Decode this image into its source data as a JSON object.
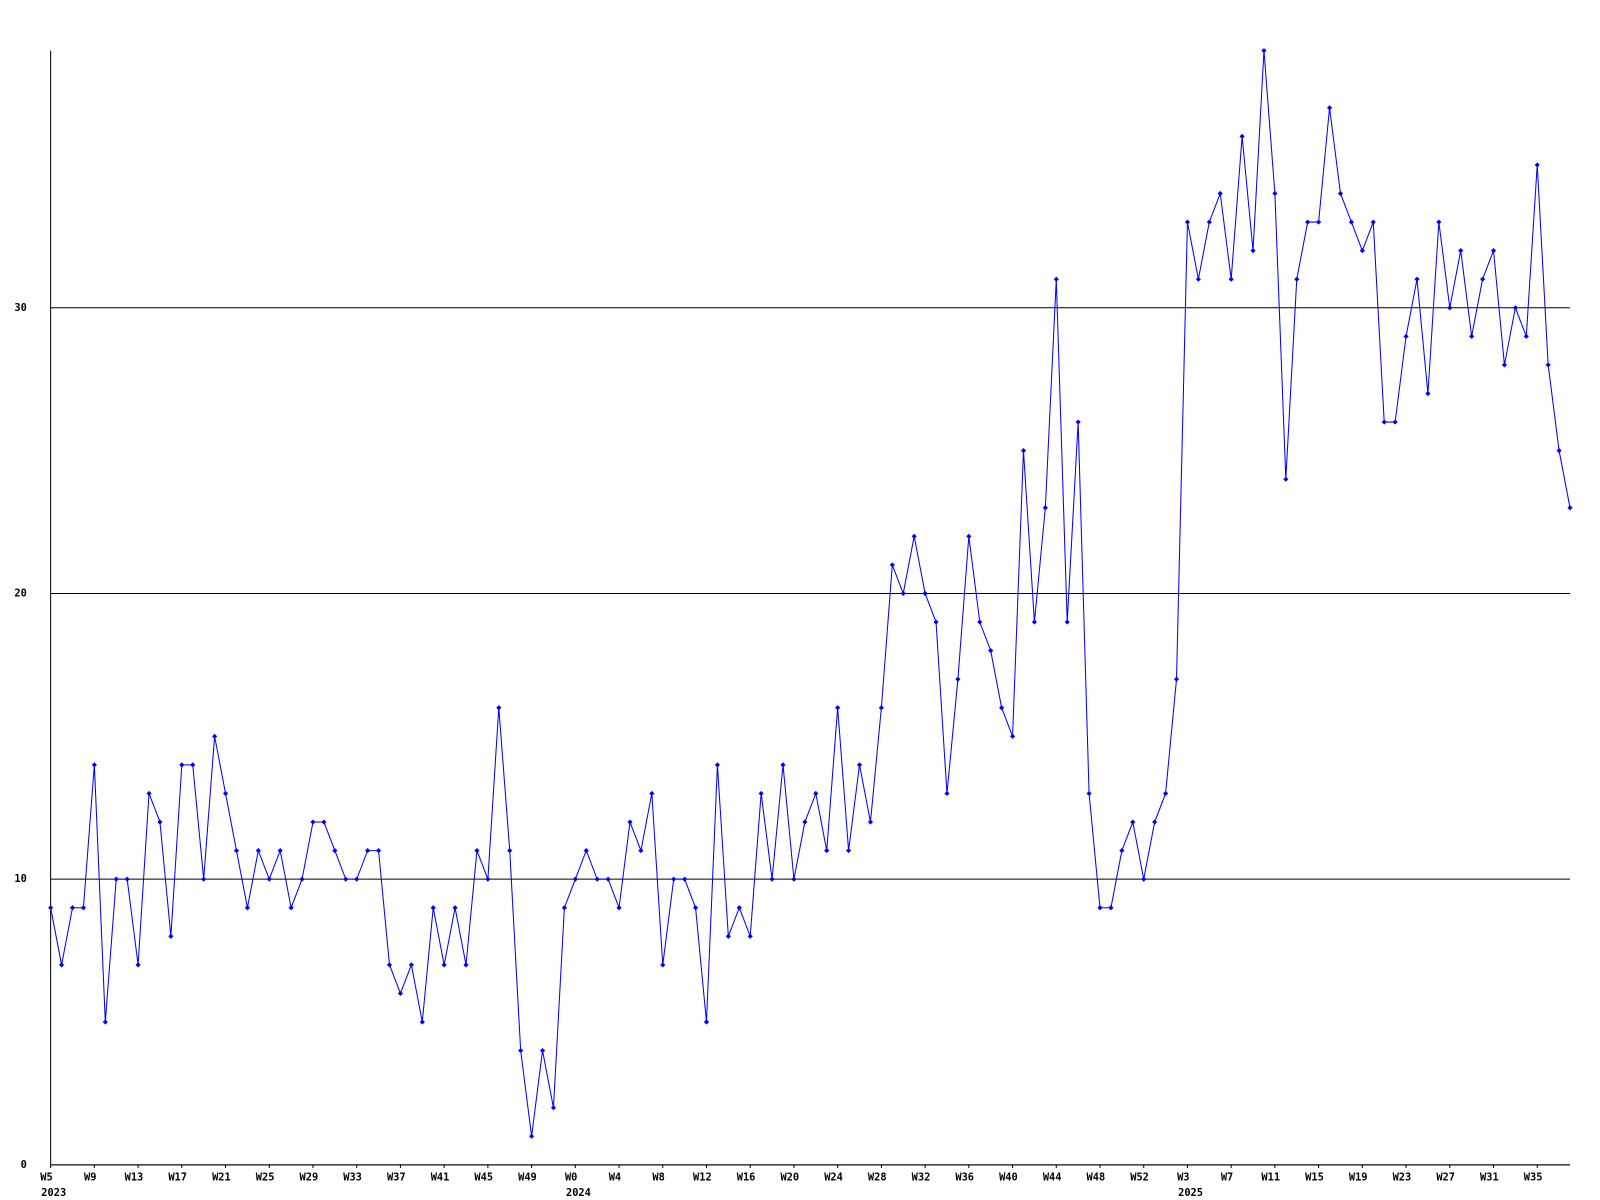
{
  "chart_data": {
    "type": "line",
    "categories": [
      "W5",
      null,
      null,
      null,
      "W9",
      null,
      null,
      null,
      "W13",
      null,
      null,
      null,
      "W17",
      null,
      null,
      null,
      "W21",
      null,
      null,
      null,
      "W25",
      null,
      null,
      null,
      "W29",
      null,
      null,
      null,
      "W33",
      null,
      null,
      null,
      "W37",
      null,
      null,
      null,
      "W41",
      null,
      null,
      null,
      "W45",
      null,
      null,
      null,
      "W49",
      null,
      null,
      null,
      "W0",
      null,
      null,
      null,
      "W4",
      null,
      null,
      null,
      "W8",
      null,
      null,
      null,
      "W12",
      null,
      null,
      null,
      "W16",
      null,
      null,
      null,
      "W20",
      null,
      null,
      null,
      "W24",
      null,
      null,
      null,
      "W28",
      null,
      null,
      null,
      "W32",
      null,
      null,
      null,
      "W36",
      null,
      null,
      null,
      "W40",
      null,
      null,
      null,
      "W44",
      null,
      null,
      null,
      "W48",
      null,
      null,
      null,
      "W52",
      null,
      null,
      null,
      "W3",
      null,
      null,
      null,
      "W7",
      null,
      null,
      null,
      "W11",
      null,
      null,
      null,
      "W15",
      null,
      null,
      null,
      "W19",
      null,
      null,
      null,
      "W23",
      null,
      null,
      null,
      "W27",
      null,
      null,
      null,
      "W31",
      null,
      null,
      null,
      "W35",
      null,
      null,
      null
    ],
    "year_labels": [
      "2023",
      "2024",
      "2025"
    ],
    "series": [
      {
        "color": "#0000ff",
        "values": [
          9,
          7,
          9,
          9,
          14,
          5,
          10,
          10,
          7,
          13,
          12,
          8,
          14,
          14,
          10,
          15,
          13,
          11,
          9,
          11,
          10,
          11,
          9,
          10,
          12,
          12,
          11,
          10,
          10,
          11,
          11,
          7,
          6,
          7,
          5,
          9,
          7,
          9,
          7,
          11,
          10,
          16,
          11,
          4,
          1,
          4,
          2,
          9,
          10,
          11,
          10,
          10,
          9,
          12,
          11,
          13,
          7,
          10,
          10,
          9,
          5,
          14,
          8,
          9,
          8,
          13,
          10,
          14,
          10,
          12,
          13,
          11,
          16,
          11,
          14,
          12,
          16,
          21,
          20,
          22,
          20,
          19,
          13,
          17,
          22,
          19,
          18,
          16,
          15,
          25,
          19,
          23,
          31,
          19,
          26,
          13,
          9,
          9,
          11,
          12,
          10,
          12,
          13,
          17,
          33,
          31,
          33,
          34,
          31,
          36,
          32,
          39,
          34,
          24,
          31,
          33,
          33,
          37,
          34,
          33,
          32,
          33,
          26,
          26,
          29,
          31,
          27,
          33,
          30,
          32,
          29,
          31,
          32,
          28,
          30,
          29,
          35,
          28,
          25,
          23
        ]
      }
    ],
    "ylim": [
      0,
      39
    ],
    "yticks": [
      0,
      10,
      20,
      30
    ],
    "grid": true
  }
}
